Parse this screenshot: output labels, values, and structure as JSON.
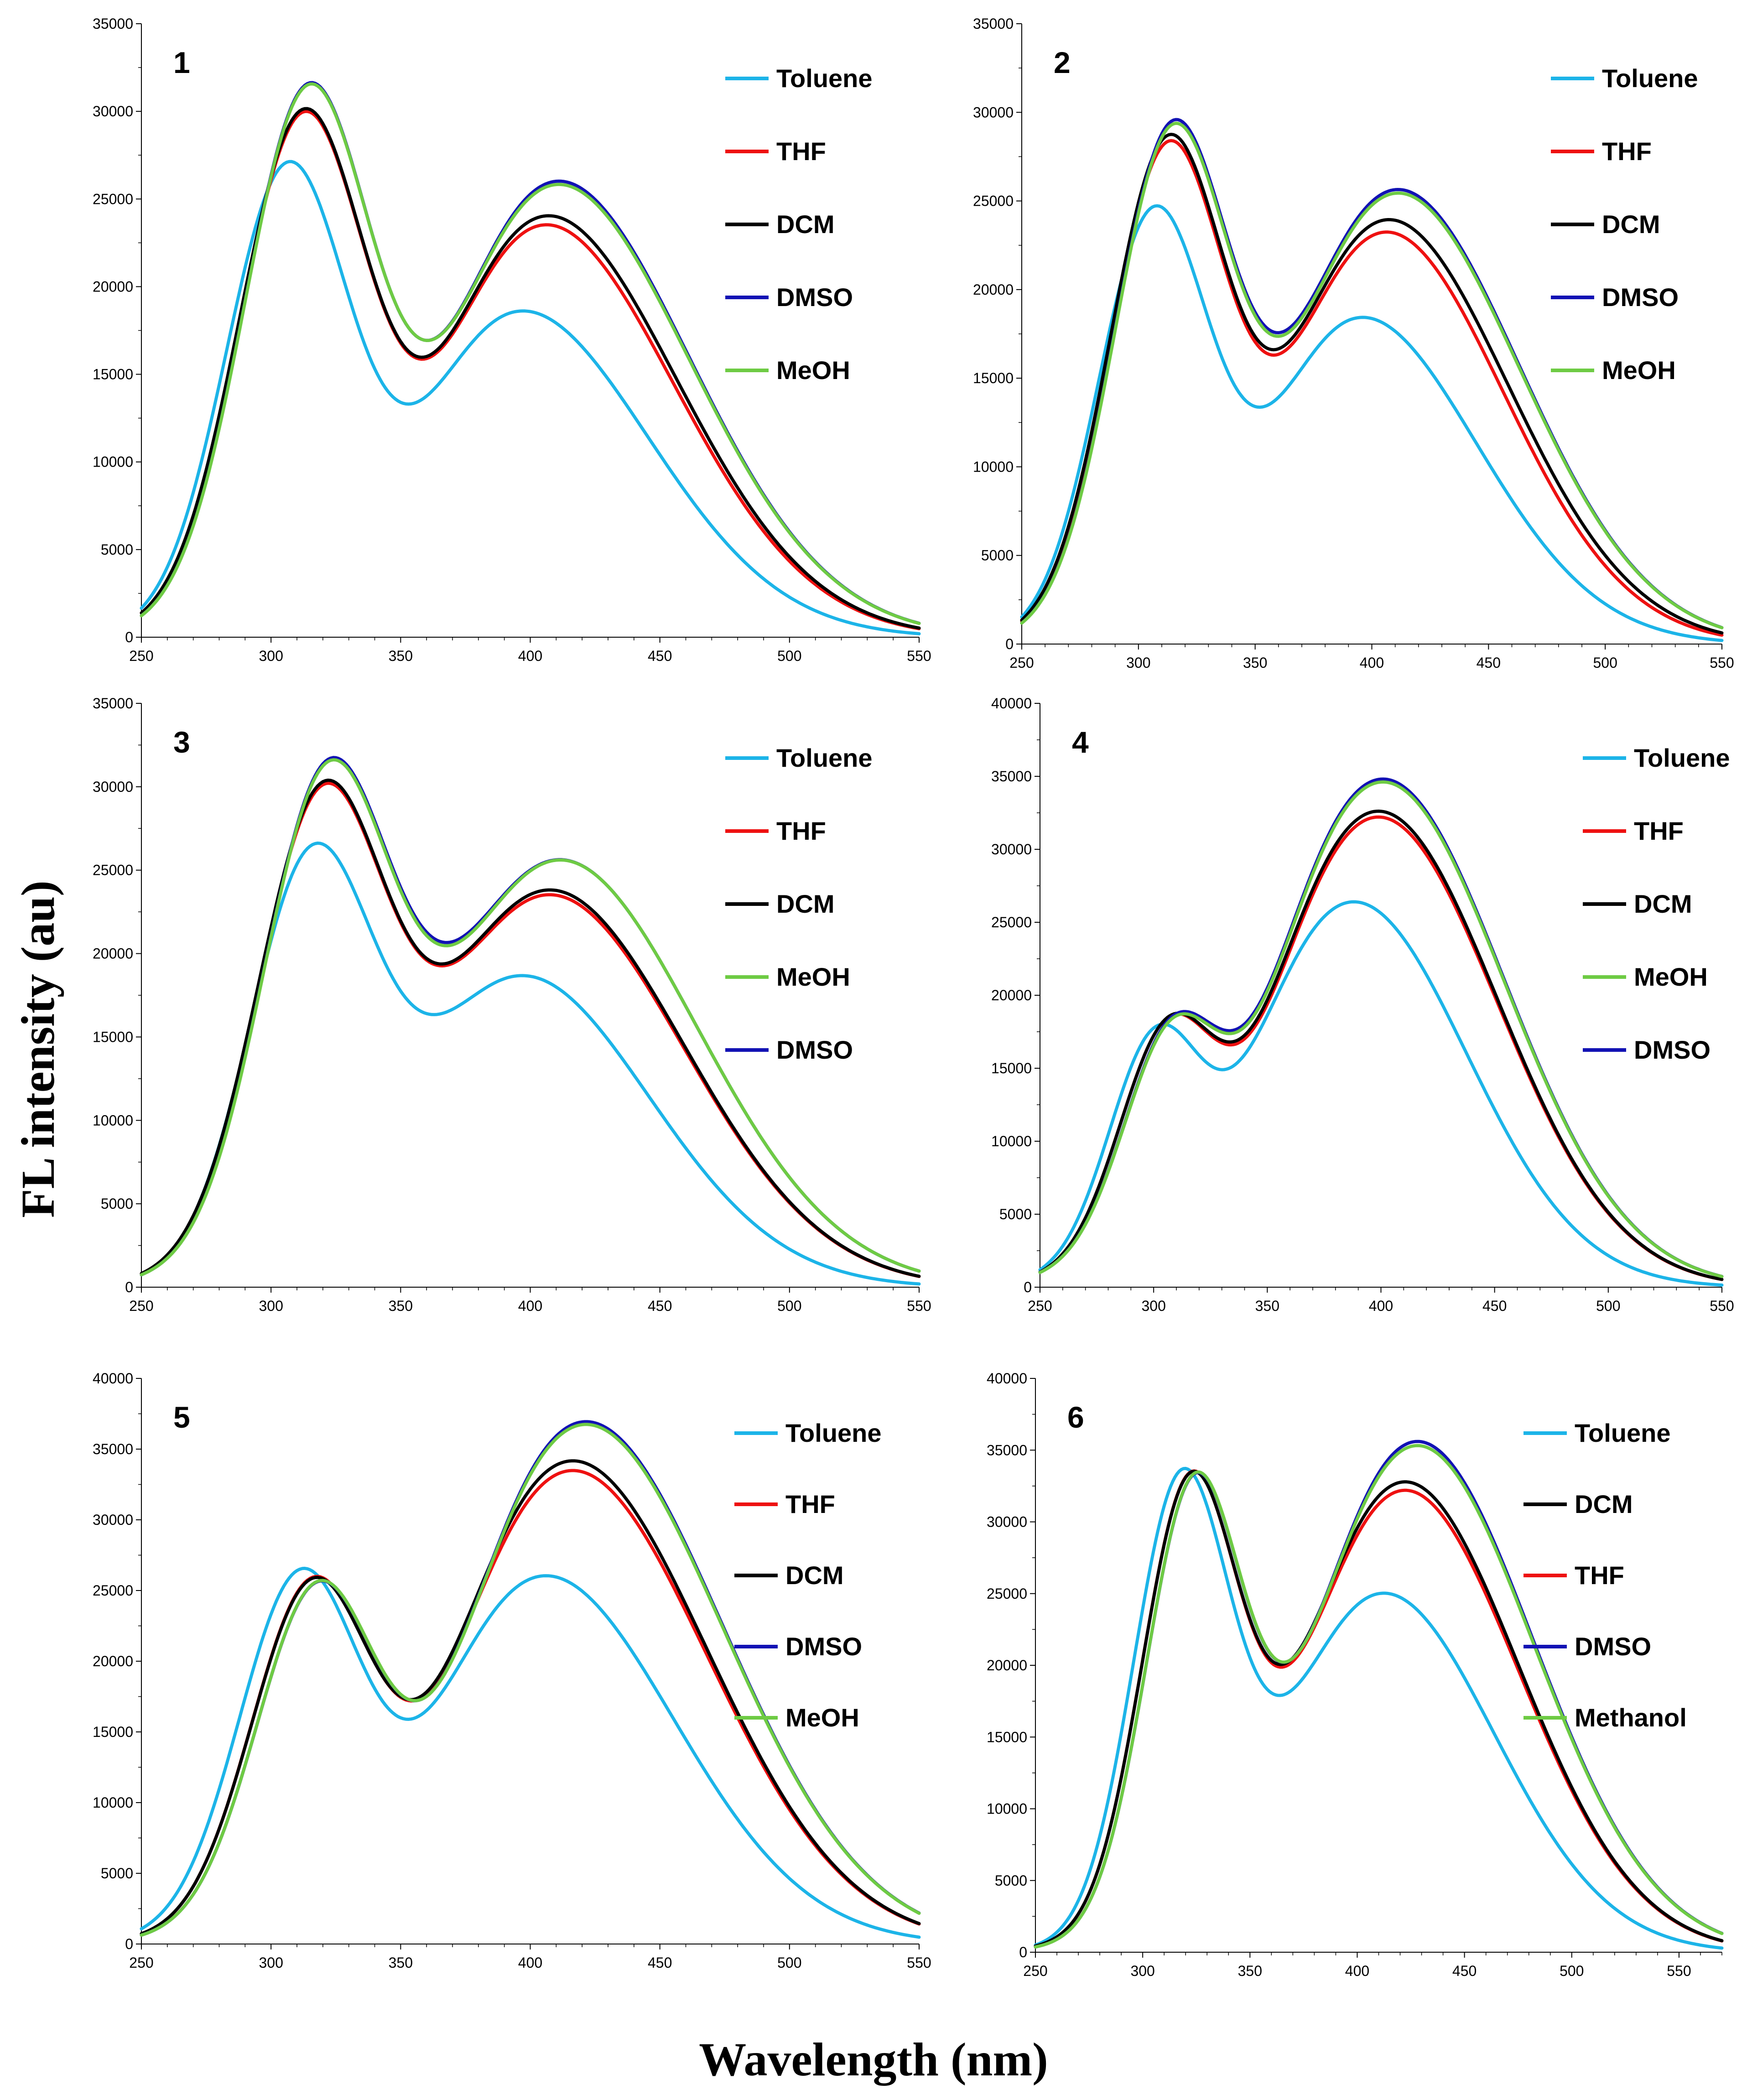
{
  "figure": {
    "y_axis_title": "FL intensity (au)",
    "x_axis_title": "Wavelength (nm)"
  },
  "colors": {
    "Toluene": "#1cb4e8",
    "THF": "#ee1111",
    "DCM": "#000000",
    "DMSO": "#1212b4",
    "MeOH": "#6ecb44",
    "Methanol": "#6ecb44"
  },
  "chart_data": [
    {
      "type": "line",
      "panel": "1",
      "xlim": [
        250,
        550
      ],
      "ylim": [
        0,
        35000
      ],
      "xticks": [
        250,
        300,
        350,
        400,
        450,
        500,
        550
      ],
      "yticks": [
        0,
        5000,
        10000,
        15000,
        20000,
        25000,
        30000,
        35000
      ],
      "legend": [
        "Toluene",
        "THF",
        "DCM",
        "DMSO",
        "MeOH"
      ],
      "series": [
        {
          "name": "Toluene",
          "p1": [
            305,
            27400
          ],
          "p2": [
            393,
            19000
          ],
          "valley": [
            350,
            13400
          ],
          "end": 200,
          "w1": 23,
          "w2": 50
        },
        {
          "name": "THF",
          "p1": [
            311,
            30600
          ],
          "p2": [
            402,
            24000
          ],
          "valley": [
            355,
            16000
          ],
          "end": 350,
          "w1": 24,
          "w2": 53
        },
        {
          "name": "DCM",
          "p1": [
            311,
            30800
          ],
          "p2": [
            403,
            24500
          ],
          "valley": [
            355,
            16100
          ],
          "end": 370,
          "w1": 24,
          "w2": 53
        },
        {
          "name": "DMSO",
          "p1": [
            313,
            32300
          ],
          "p2": [
            407,
            26500
          ],
          "valley": [
            358,
            17000
          ],
          "end": 420,
          "w1": 24,
          "w2": 54
        },
        {
          "name": "MeOH",
          "p1": [
            313,
            32200
          ],
          "p2": [
            407,
            26300
          ],
          "valley": [
            358,
            17000
          ],
          "end": 420,
          "w1": 24,
          "w2": 54
        }
      ]
    },
    {
      "type": "line",
      "panel": "2",
      "xlim": [
        250,
        550
      ],
      "ylim": [
        0,
        35000
      ],
      "xticks": [
        250,
        300,
        350,
        400,
        450,
        500,
        550
      ],
      "yticks": [
        0,
        5000,
        10000,
        15000,
        20000,
        25000,
        30000,
        35000
      ],
      "legend": [
        "Toluene",
        "THF",
        "DCM",
        "DMSO",
        "MeOH"
      ],
      "series": [
        {
          "name": "Toluene",
          "p1": [
            305,
            24900
          ],
          "p2": [
            392,
            18800
          ],
          "valley": [
            350,
            13400
          ],
          "end": 200,
          "w1": 23,
          "w2": 50
        },
        {
          "name": "THF",
          "p1": [
            311,
            28800
          ],
          "p2": [
            403,
            23600
          ],
          "valley": [
            355,
            16400
          ],
          "end": 450,
          "w1": 24,
          "w2": 53
        },
        {
          "name": "DCM",
          "p1": [
            311,
            29200
          ],
          "p2": [
            404,
            24300
          ],
          "valley": [
            355,
            16700
          ],
          "end": 480,
          "w1": 24,
          "w2": 54
        },
        {
          "name": "DMSO",
          "p1": [
            313,
            30000
          ],
          "p2": [
            408,
            26000
          ],
          "valley": [
            358,
            17600
          ],
          "end": 550,
          "w1": 24,
          "w2": 55
        },
        {
          "name": "MeOH",
          "p1": [
            313,
            29800
          ],
          "p2": [
            408,
            25800
          ],
          "valley": [
            358,
            17400
          ],
          "end": 550,
          "w1": 24,
          "w2": 55
        }
      ]
    },
    {
      "type": "line",
      "panel": "3",
      "xlim": [
        250,
        550
      ],
      "ylim": [
        0,
        35000
      ],
      "xticks": [
        250,
        300,
        350,
        400,
        450,
        500,
        550
      ],
      "yticks": [
        0,
        5000,
        10000,
        15000,
        20000,
        25000,
        30000,
        35000
      ],
      "legend": [
        "Toluene",
        "THF",
        "DCM",
        "MeOH",
        "DMSO"
      ],
      "series": [
        {
          "name": "Toluene",
          "p1": [
            314,
            26400
          ],
          "p2": [
            394,
            19000
          ],
          "valley": [
            360,
            16400
          ],
          "end": 200,
          "w1": 23,
          "w2": 50
        },
        {
          "name": "THF",
          "p1": [
            318,
            30200
          ],
          "p2": [
            405,
            23800
          ],
          "valley": [
            361,
            19500
          ],
          "end": 500,
          "w1": 24,
          "w2": 54
        },
        {
          "name": "DCM",
          "p1": [
            318,
            30400
          ],
          "p2": [
            405,
            24100
          ],
          "valley": [
            361,
            19600
          ],
          "end": 520,
          "w1": 24,
          "w2": 54
        },
        {
          "name": "MeOH",
          "p1": [
            320,
            31600
          ],
          "p2": [
            409,
            25900
          ],
          "valley": [
            364,
            20600
          ],
          "end": 750,
          "w1": 24,
          "w2": 55
        },
        {
          "name": "DMSO",
          "p1": [
            320,
            31700
          ],
          "p2": [
            409,
            25900
          ],
          "valley": [
            364,
            20800
          ],
          "end": 780,
          "w1": 24,
          "w2": 55
        }
      ]
    },
    {
      "type": "line",
      "panel": "4",
      "xlim": [
        250,
        550
      ],
      "ylim": [
        0,
        40000
      ],
      "xticks": [
        250,
        300,
        350,
        400,
        450,
        500,
        550
      ],
      "yticks": [
        0,
        5000,
        10000,
        15000,
        20000,
        25000,
        30000,
        35000,
        40000
      ],
      "legend": [
        "Toluene",
        "THF",
        "DCM",
        "MeOH",
        "DMSO"
      ],
      "series": [
        {
          "name": "Toluene",
          "p1": [
            300,
            19000
          ],
          "p2": [
            387,
            26500
          ],
          "valley": [
            330,
            14900
          ],
          "end": 150,
          "w1": 20,
          "w2": 50
        },
        {
          "name": "THF",
          "p1": [
            306,
            20600
          ],
          "p2": [
            398,
            32300
          ],
          "valley": [
            334,
            16600
          ],
          "end": 350,
          "w1": 21,
          "w2": 53
        },
        {
          "name": "DCM",
          "p1": [
            306,
            20600
          ],
          "p2": [
            398,
            32700
          ],
          "valley": [
            334,
            16800
          ],
          "end": 400,
          "w1": 21,
          "w2": 53
        },
        {
          "name": "MeOH",
          "p1": [
            308,
            20900
          ],
          "p2": [
            400,
            34700
          ],
          "valley": [
            335,
            17400
          ],
          "end": 600,
          "w1": 21,
          "w2": 54
        },
        {
          "name": "DMSO",
          "p1": [
            308,
            21000
          ],
          "p2": [
            400,
            34900
          ],
          "valley": [
            335,
            17600
          ],
          "end": 650,
          "w1": 21,
          "w2": 54
        }
      ]
    },
    {
      "type": "line",
      "panel": "5",
      "xlim": [
        250,
        550
      ],
      "ylim": [
        0,
        40000
      ],
      "xticks": [
        250,
        300,
        350,
        400,
        450,
        500,
        550
      ],
      "yticks": [
        0,
        5000,
        10000,
        15000,
        20000,
        25000,
        30000,
        35000,
        40000
      ],
      "legend": [
        "Toluene",
        "THF",
        "DCM",
        "DMSO",
        "MeOH"
      ],
      "series": [
        {
          "name": "Toluene",
          "p1": [
            310,
            27300
          ],
          "p2": [
            403,
            26400
          ],
          "valley": [
            352,
            15900
          ],
          "end": 400,
          "w1": 23,
          "w2": 52
        },
        {
          "name": "THF",
          "p1": [
            315,
            27500
          ],
          "p2": [
            414,
            33800
          ],
          "valley": [
            355,
            17200
          ],
          "end": 1100,
          "w1": 23,
          "w2": 54
        },
        {
          "name": "DCM",
          "p1": [
            315,
            27500
          ],
          "p2": [
            414,
            34500
          ],
          "valley": [
            355,
            17300
          ],
          "end": 1300,
          "w1": 23,
          "w2": 54
        },
        {
          "name": "DMSO",
          "p1": [
            317,
            27500
          ],
          "p2": [
            419,
            37300
          ],
          "valley": [
            358,
            17300
          ],
          "end": 1800,
          "w1": 23,
          "w2": 55
        },
        {
          "name": "MeOH",
          "p1": [
            317,
            27500
          ],
          "p2": [
            419,
            37100
          ],
          "valley": [
            358,
            17300
          ],
          "end": 1800,
          "w1": 23,
          "w2": 55
        }
      ]
    },
    {
      "type": "line",
      "panel": "6",
      "xlim": [
        250,
        570
      ],
      "ylim": [
        0,
        40000
      ],
      "xticks": [
        250,
        300,
        350,
        400,
        450,
        500,
        550
      ],
      "yticks": [
        0,
        5000,
        10000,
        15000,
        20000,
        25000,
        30000,
        35000,
        40000
      ],
      "legend": [
        "Toluene",
        "DCM",
        "THF",
        "DMSO",
        "Methanol"
      ],
      "series": [
        {
          "name": "Toluene",
          "p1": [
            317,
            33800
          ],
          "p2": [
            410,
            25300
          ],
          "valley": [
            364,
            17900
          ],
          "end": 300,
          "w1": 22,
          "w2": 52
        },
        {
          "name": "DCM",
          "p1": [
            321,
            34000
          ],
          "p2": [
            420,
            33100
          ],
          "valley": [
            366,
            20100
          ],
          "end": 800,
          "w1": 22,
          "w2": 55
        },
        {
          "name": "THF",
          "p1": [
            321,
            34000
          ],
          "p2": [
            420,
            32500
          ],
          "valley": [
            366,
            19900
          ],
          "end": 700,
          "w1": 22,
          "w2": 55
        },
        {
          "name": "DMSO",
          "p1": [
            323,
            34100
          ],
          "p2": [
            426,
            35900
          ],
          "valley": [
            368,
            20300
          ],
          "end": 1200,
          "w1": 22,
          "w2": 56
        },
        {
          "name": "Methanol",
          "p1": [
            323,
            34100
          ],
          "p2": [
            426,
            35600
          ],
          "valley": [
            368,
            20300
          ],
          "end": 1200,
          "w1": 22,
          "w2": 56
        }
      ]
    }
  ]
}
